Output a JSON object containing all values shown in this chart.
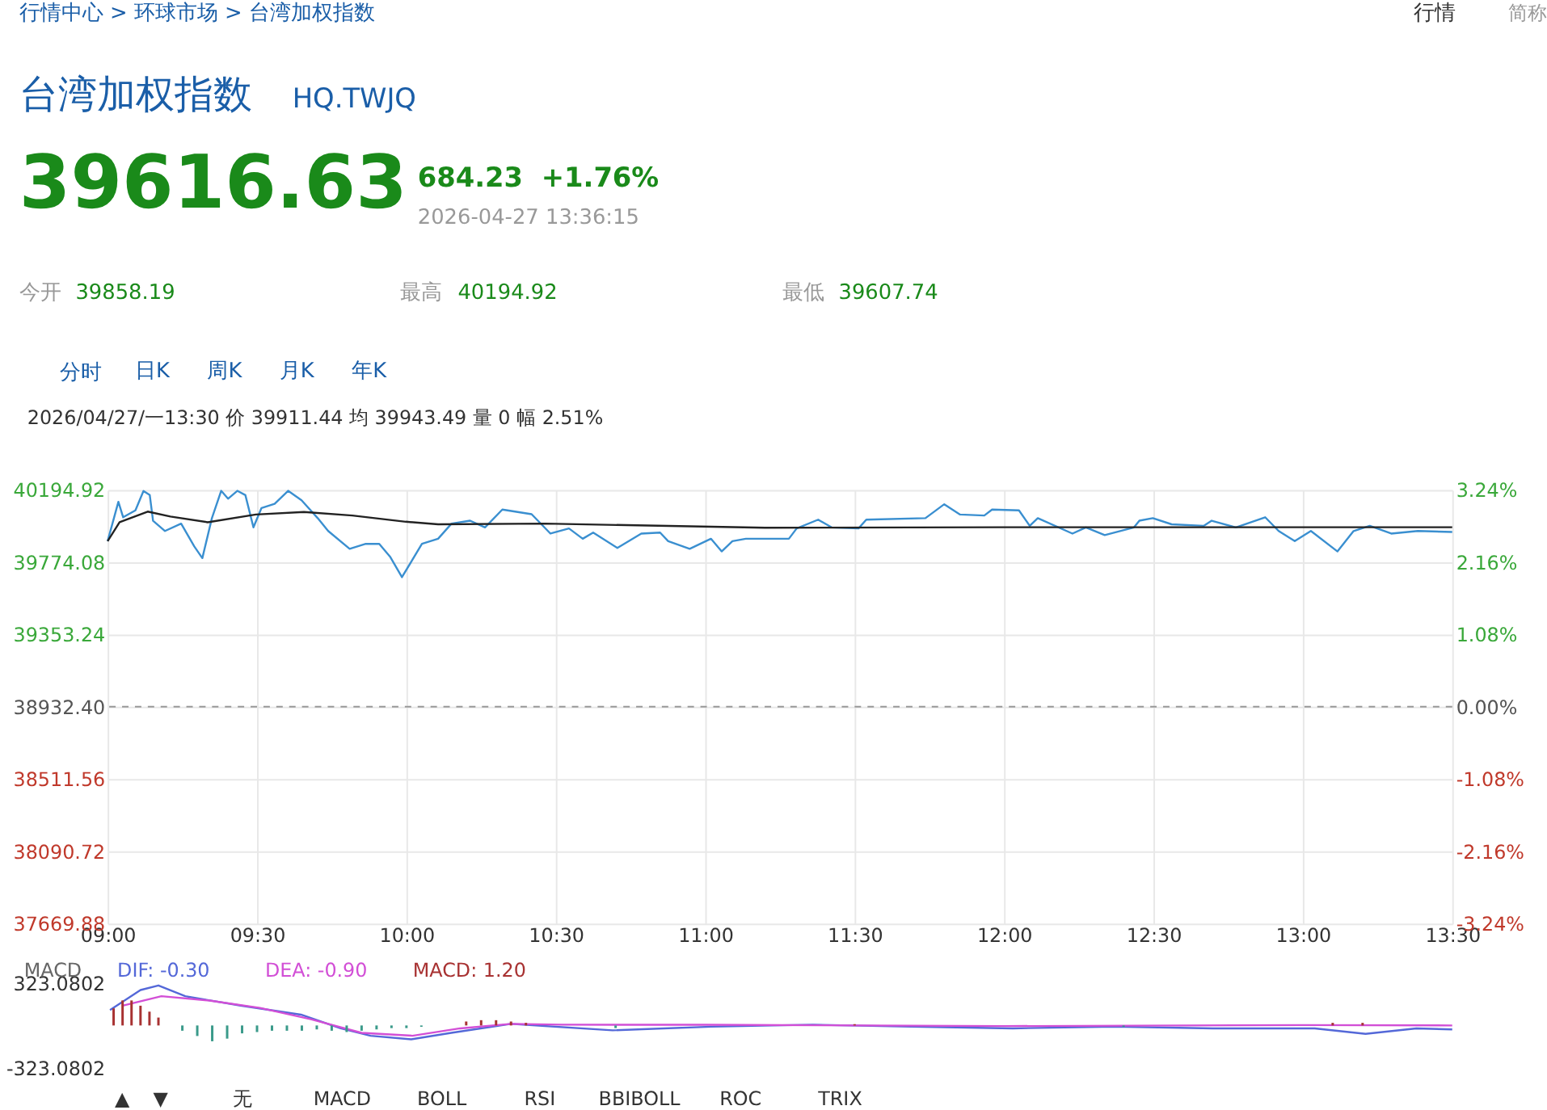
{
  "chart_data": [
    {
      "type": "line",
      "title": "台湾加权指数",
      "subtitle": "HQ.TWJQ",
      "annotations": [
        "行情中心 > 环球市场 > 台湾加权指数",
        "行情",
        "简称",
        "39616.63",
        "684.23",
        "+1.76%",
        "2026-04-27 13:36:15",
        "今开",
        "39858.19",
        "最高",
        "40194.92",
        "最低",
        "39607.74",
        "分时",
        "日K",
        "周K",
        "月K",
        "年K",
        "2026/04/27/一13:30 价 39911.44 均 39943.49 量 0 幅 2.51%"
      ],
      "xlim": [
        9,
        13.5
      ],
      "xticks": [
        {
          "value": 9,
          "label": "09:00"
        },
        {
          "value": 9.5,
          "label": "09:30"
        },
        {
          "value": 10,
          "label": "10:00"
        },
        {
          "value": 10.5,
          "label": "10:30"
        },
        {
          "value": 11,
          "label": "11:00"
        },
        {
          "value": 11.5,
          "label": "11:30"
        },
        {
          "value": 12,
          "label": "12:00"
        },
        {
          "value": 12.5,
          "label": "12:30"
        },
        {
          "value": 13,
          "label": "13:00"
        },
        {
          "value": 13.5,
          "label": "13:30"
        }
      ],
      "ylim": [
        37669.88,
        40194.92
      ],
      "yticks": [
        {
          "value": 37669.88,
          "label": "37669.88"
        },
        {
          "value": 38090.72,
          "label": "38090.72"
        },
        {
          "value": 38511.56,
          "label": "38511.56"
        },
        {
          "value": 38932.4,
          "label": "38932.40"
        },
        {
          "value": 39353.24,
          "label": "39353.24"
        },
        {
          "value": 39774.08,
          "label": "39774.08"
        },
        {
          "value": 40194.92,
          "label": "40194.92"
        }
      ],
      "y2lim": [
        -3.24,
        3.24
      ],
      "y2ticks": [
        {
          "value": -3.24,
          "label": "-3.24%"
        },
        {
          "value": -2.16,
          "label": "-2.16%"
        },
        {
          "value": -1.08,
          "label": "-1.08%"
        },
        {
          "value": 0,
          "label": "0.00%"
        },
        {
          "value": 1.08,
          "label": "1.08%"
        },
        {
          "value": 2.16,
          "label": "2.16%"
        },
        {
          "value": 3.24,
          "label": "3.24%"
        }
      ],
      "ref_lines": [
        {
          "axis": "y",
          "value": 38932.4,
          "color": "#999999",
          "line_style": "dashed"
        }
      ],
      "grid": true,
      "legend": false,
      "marker": "none",
      "line_style": "solid",
      "series": [
        {
          "color": "#3a8fd0",
          "x": [
            9.0,
            9.036,
            9.052,
            9.093,
            9.12,
            9.141,
            9.152,
            9.192,
            9.246,
            9.29,
            9.317,
            9.349,
            9.38,
            9.403,
            9.434,
            9.461,
            9.488,
            9.515,
            9.559,
            9.604,
            9.649,
            9.703,
            9.738,
            9.81,
            9.864,
            9.909,
            9.945,
            9.985,
            10.052,
            10.106,
            10.151,
            10.213,
            10.263,
            10.321,
            10.419,
            10.482,
            10.544,
            10.59,
            10.625,
            10.706,
            10.786,
            10.849,
            10.876,
            10.948,
            11.019,
            11.055,
            11.091,
            11.136,
            11.253,
            11.28,
            11.306,
            11.378,
            11.423,
            11.513,
            11.539,
            11.737,
            11.8,
            11.853,
            11.934,
            11.96,
            12.05,
            12.086,
            12.113,
            12.229,
            12.274,
            12.337,
            12.435,
            12.453,
            12.498,
            12.561,
            12.668,
            12.695,
            12.776,
            12.874,
            12.919,
            12.973,
            13.027,
            13.116,
            13.17,
            13.224,
            13.296,
            13.385,
            13.5
          ],
          "values": [
            39897,
            40126,
            40036,
            40076,
            40189,
            40165,
            40016,
            39956,
            39999,
            39866,
            39798,
            40031,
            40190,
            40144,
            40190,
            40165,
            39977,
            40090,
            40114,
            40190,
            40135,
            40031,
            39956,
            39852,
            39881,
            39881,
            39807,
            39687,
            39881,
            39911,
            39999,
            40016,
            39977,
            40081,
            40054,
            39941,
            39971,
            39911,
            39947,
            39857,
            39941,
            39947,
            39897,
            39852,
            39911,
            39837,
            39897,
            39911,
            39911,
            39911,
            39971,
            40022,
            39977,
            39971,
            40022,
            40031,
            40112,
            40052,
            40046,
            40081,
            40076,
            39986,
            40031,
            39941,
            39977,
            39932,
            39977,
            40016,
            40031,
            39995,
            39986,
            40016,
            39977,
            40036,
            39956,
            39897,
            39956,
            39837,
            39956,
            39986,
            39941,
            39956,
            39950
          ]
        },
        {
          "color": "#222222",
          "x": [
            9.0,
            9.04,
            9.134,
            9.21,
            9.335,
            9.496,
            9.657,
            9.819,
            9.998,
            10.106,
            10.464,
            11.2,
            12.0,
            12.8,
            13.5
          ],
          "values": [
            39897,
            40007,
            40069,
            40040,
            40007,
            40052,
            40067,
            40046,
            40010,
            39995,
            39999,
            39975,
            39978,
            39978,
            39978
          ]
        }
      ]
    },
    {
      "type": "line",
      "title": "MACD",
      "legend": "top left",
      "tick_labels": "y",
      "annotations": [
        "▲",
        "▼",
        "无",
        "MACD",
        "BOLL",
        "RSI",
        "BBIBOLL",
        "ROC",
        "TRIX"
      ],
      "xlim": [
        9,
        13.5
      ],
      "ylim": [
        -323.0802,
        323.0802
      ],
      "yticks": [
        -323.0802,
        323.0802
      ],
      "series": [
        {
          "name": "DIF: -0.30",
          "color": "#5468d8",
          "x": [
            9.008,
            9.11,
            9.17,
            9.26,
            9.445,
            9.647,
            9.78,
            9.88,
            10.016,
            10.15,
            10.35,
            10.69,
            11.02,
            11.36,
            11.69,
            12.03,
            12.37,
            12.7,
            13.04,
            13.21,
            13.38,
            13.5
          ],
          "values": [
            117,
            269,
            304,
            222,
            151,
            82,
            -22,
            -78,
            -105,
            -56,
            12,
            -37,
            -9,
            6,
            -9,
            -22,
            -9,
            -22,
            -22,
            -64,
            -22,
            -30
          ]
        },
        {
          "name": "DEA: -0.90",
          "color": "#d24fd6",
          "x": [
            9.05,
            9.18,
            9.34,
            9.51,
            9.68,
            9.85,
            10.02,
            10.18,
            10.35,
            10.52,
            11.0,
            12.0,
            13.0,
            13.5
          ],
          "values": [
            150,
            222,
            189,
            133,
            47,
            -56,
            -78,
            -22,
            12,
            6,
            5,
            -5,
            3,
            0
          ]
        },
        {
          "name": "MACD: 1.20",
          "type": "bar",
          "color": "#a83232",
          "x": [
            9.02,
            9.05,
            9.08,
            9.11,
            9.14,
            9.17,
            9.25,
            9.3,
            9.35,
            9.4,
            9.45,
            9.5,
            9.55,
            9.6,
            9.65,
            9.7,
            9.75,
            9.8,
            9.85,
            9.9,
            9.95,
            10.0,
            10.05,
            10.2,
            10.25,
            10.3,
            10.35,
            10.4,
            10.7,
            11.5,
            12.4,
            13.1,
            13.2
          ],
          "values": [
            130,
            190,
            190,
            150,
            105,
            60,
            -40,
            -80,
            -120,
            -100,
            -60,
            -50,
            -40,
            -40,
            -40,
            -30,
            -40,
            -50,
            -40,
            -30,
            -20,
            -20,
            -10,
            30,
            40,
            40,
            30,
            20,
            -20,
            10,
            -10,
            20,
            20
          ],
          "colors": [
            "#a83232",
            "#a83232",
            "#a83232",
            "#a83232",
            "#a83232",
            "#a83232",
            "#3a9a8a",
            "#3a9a8a",
            "#3a9a8a",
            "#3a9a8a",
            "#3a9a8a",
            "#3a9a8a",
            "#3a9a8a",
            "#3a9a8a",
            "#3a9a8a",
            "#3a9a8a",
            "#3a9a8a",
            "#3a9a8a",
            "#3a9a8a",
            "#3a9a8a",
            "#3a9a8a",
            "#3a9a8a",
            "#3a9a8a",
            "#a83232",
            "#a83232",
            "#a83232",
            "#a83232",
            "#a83232",
            "#3a9a8a",
            "#a83232",
            "#3a9a8a",
            "#a83232",
            "#a83232"
          ]
        }
      ]
    }
  ]
}
